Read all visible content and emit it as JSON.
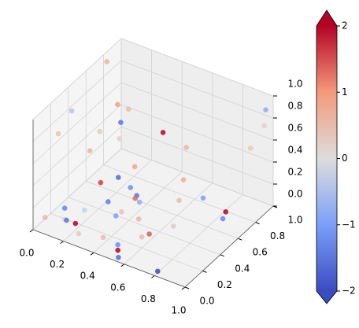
{
  "chart_data": {
    "type": "scatter3d",
    "x": [
      0.05,
      0.28,
      0.15,
      0.42,
      0.2,
      0.12,
      0.22,
      0.35,
      0.05,
      0.08,
      0.3,
      0.38,
      0.45,
      0.48,
      0.44,
      0.3,
      0.2,
      0.32,
      0.4,
      0.28,
      0.7,
      0.88,
      0.66,
      0.8,
      0.92,
      0.93,
      0.7,
      0.98,
      0.97,
      0.62,
      0.55,
      0.72,
      0.5,
      0.15,
      0.18,
      0.25,
      0.5,
      0.22,
      0.3,
      0.45,
      0.05,
      0.55,
      0.82,
      0.6,
      0.35
    ],
    "y": [
      0.75,
      0.6,
      0.7,
      0.75,
      0.65,
      0.55,
      0.6,
      0.55,
      0.2,
      0.3,
      0.45,
      0.45,
      0.4,
      0.38,
      0.4,
      0.25,
      0.3,
      0.3,
      0.25,
      0.1,
      0.5,
      0.95,
      0.6,
      0.55,
      0.6,
      0.55,
      0.45,
      0.95,
      0.95,
      0.25,
      0.25,
      0.35,
      0.1,
      0.1,
      0.05,
      0.05,
      0.1,
      0.0,
      0.0,
      0.02,
      0.05,
      0.02,
      0.0,
      0.2,
      0.4
    ],
    "z": [
      1.0,
      0.8,
      0.7,
      0.55,
      0.6,
      0.55,
      0.5,
      0.35,
      0.75,
      0.9,
      0.3,
      0.25,
      0.25,
      0.22,
      0.22,
      0.4,
      0.6,
      0.2,
      0.15,
      0.25,
      0.45,
      0.5,
      0.65,
      0.3,
      0.2,
      0.18,
      0.3,
      0.9,
      0.75,
      0.1,
      0.2,
      0.15,
      0.05,
      0.2,
      0.15,
      0.15,
      0.0,
      0.2,
      0.12,
      0.15,
      0.1,
      0.02,
      0.05,
      0.1,
      0.05
    ],
    "c": [
      0.6,
      0.5,
      0.9,
      2,
      -1.5,
      0.3,
      0.2,
      0.8,
      0.4,
      -0.4,
      -1.6,
      -1.2,
      -1.5,
      -0.8,
      1.3,
      1.6,
      0.6,
      -1.4,
      -1.0,
      -0.2,
      0.7,
      0.3,
      0.6,
      -1.0,
      2,
      -1.3,
      0.5,
      -0.8,
      0.2,
      1.4,
      0.6,
      0.3,
      -1.2,
      -1.3,
      0.2,
      2,
      2,
      -1.5,
      0.3,
      0.5,
      0.6,
      -1.6,
      -2,
      0.5,
      0.4
    ],
    "xlim": [
      0,
      1
    ],
    "ylim": [
      0,
      1
    ],
    "zlim": [
      0,
      1
    ],
    "xticks": [
      {
        "value": 0,
        "label": "0.0"
      },
      0.2,
      0.4,
      0.6,
      0.8,
      {
        "value": 1,
        "label": "1.0"
      }
    ],
    "yticks": [
      {
        "value": 0,
        "label": "0.0"
      },
      0.2,
      0.4,
      0.6,
      0.8,
      {
        "value": 1,
        "label": "1.0"
      }
    ],
    "zticks": [
      {
        "value": 0,
        "label": "0.0"
      },
      0.2,
      0.4,
      0.6,
      0.8,
      {
        "value": 1,
        "label": "1.0"
      }
    ],
    "colormap": "coolwarm",
    "clim": [
      -2,
      2
    ],
    "cticks": [
      {
        "value": -2,
        "label": "−2"
      },
      {
        "value": -1,
        "label": "−1"
      },
      0,
      1,
      2
    ],
    "grid": true
  }
}
